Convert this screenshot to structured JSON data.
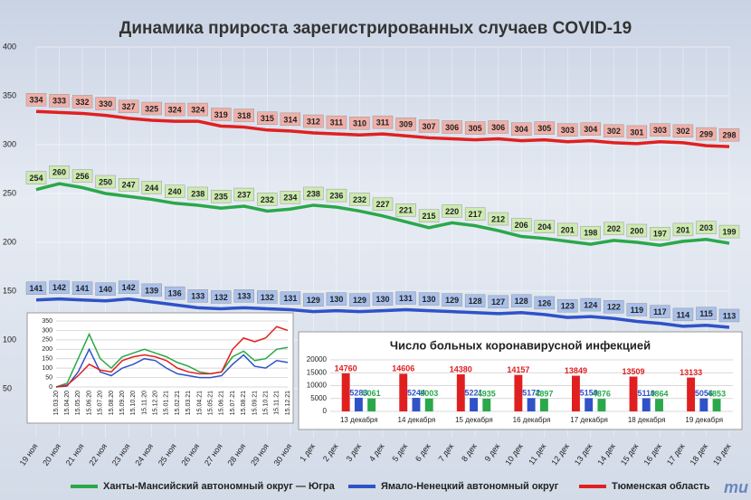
{
  "chart_data": [
    {
      "type": "line",
      "title": "Динамика прироста зарегистрированных случаев COVID-19",
      "categories": [
        "19 ноя",
        "20 ноя",
        "21 ноя",
        "22 ноя",
        "23 ноя",
        "24 ноя",
        "25 ноя",
        "26 ноя",
        "27 ноя",
        "28 ноя",
        "29 ноя",
        "30 ноя",
        "1 дек",
        "2 дек",
        "3 дек",
        "4 дек",
        "5 дек",
        "6 дек",
        "7 дек",
        "8 дек",
        "9 дек",
        "10 дек",
        "11 дек",
        "12 дек",
        "13 дек",
        "14 дек",
        "15 дек",
        "16 дек",
        "17 дек",
        "18 дек",
        "19 дек"
      ],
      "series": [
        {
          "name": "Ханты-Мансийский автономный округ — Югра",
          "color": "#2aa84a",
          "values": [
            254,
            260,
            256,
            250,
            247,
            244,
            240,
            238,
            235,
            237,
            232,
            234,
            238,
            236,
            232,
            227,
            221,
            215,
            220,
            217,
            212,
            206,
            204,
            201,
            198,
            202,
            200,
            197,
            201,
            203,
            199
          ]
        },
        {
          "name": "Ямало-Ненецкий автономный округ",
          "color": "#2f52c8",
          "values": [
            141,
            142,
            141,
            140,
            142,
            139,
            136,
            133,
            132,
            133,
            132,
            131,
            129,
            130,
            129,
            130,
            131,
            130,
            129,
            128,
            127,
            128,
            126,
            123,
            124,
            122,
            119,
            117,
            114,
            115,
            113
          ]
        },
        {
          "name": "Тюменская область",
          "color": "#e02020",
          "values": [
            334,
            333,
            332,
            330,
            327,
            325,
            324,
            324,
            319,
            318,
            315,
            314,
            312,
            311,
            310,
            311,
            309,
            307,
            306,
            305,
            306,
            304,
            305,
            303,
            304,
            302,
            301,
            303,
            302,
            299,
            298
          ]
        }
      ],
      "ylim": [
        0,
        400
      ],
      "yticks": [
        50,
        100,
        150,
        200,
        250,
        300,
        350,
        400
      ],
      "grid": true,
      "legend": "bottom",
      "watermark": "mu"
    },
    {
      "type": "line",
      "categories": [
        "15.03.20",
        "15.04.20",
        "15.05.20",
        "15.06.20",
        "15.07.20",
        "15.08.20",
        "15.09.20",
        "15.10.20",
        "15.11.20",
        "15.12.20",
        "15.01.21",
        "15.02.21",
        "15.03.21",
        "15.04.21",
        "15.05.21",
        "15.06.21",
        "15.07.21",
        "15.08.21",
        "15.09.21",
        "15.10.21",
        "15.11.21",
        "15.12.21"
      ],
      "series": [
        {
          "color": "#2aa84a",
          "values": [
            0,
            20,
            150,
            280,
            150,
            100,
            160,
            180,
            200,
            180,
            160,
            130,
            110,
            80,
            70,
            80,
            160,
            190,
            140,
            150,
            200,
            210
          ]
        },
        {
          "color": "#2f52c8",
          "values": [
            0,
            5,
            80,
            200,
            80,
            60,
            100,
            120,
            150,
            140,
            100,
            70,
            60,
            50,
            50,
            60,
            120,
            170,
            110,
            100,
            140,
            130
          ]
        },
        {
          "color": "#e02020",
          "values": [
            0,
            10,
            60,
            120,
            90,
            80,
            140,
            160,
            170,
            160,
            140,
            100,
            80,
            70,
            70,
            80,
            200,
            260,
            240,
            260,
            320,
            300
          ]
        }
      ],
      "ylim": [
        0,
        350
      ],
      "yticks": [
        0,
        50,
        100,
        150,
        200,
        250,
        300,
        350
      ],
      "grid": true
    },
    {
      "type": "bar",
      "title": "Число больных коронавирусной  инфекцией",
      "categories": [
        "13 декабря",
        "14 декабря",
        "15 декабря",
        "16 декабря",
        "17 декабря",
        "18 декабря",
        "19 декабря"
      ],
      "series": [
        {
          "color": "#e02020",
          "values": [
            14760,
            14606,
            14380,
            14157,
            13849,
            13509,
            13133
          ]
        },
        {
          "color": "#2f52c8",
          "values": [
            5283,
            5244,
            5221,
            5172,
            5150,
            5119,
            5056
          ]
        },
        {
          "color": "#2aa84a",
          "values": [
            5061,
            5003,
            4935,
            4897,
            4876,
            4864,
            4853
          ]
        }
      ],
      "ylim": [
        0,
        20000
      ],
      "yticks": [
        0,
        5000,
        10000,
        15000,
        20000
      ],
      "grid": true
    }
  ]
}
